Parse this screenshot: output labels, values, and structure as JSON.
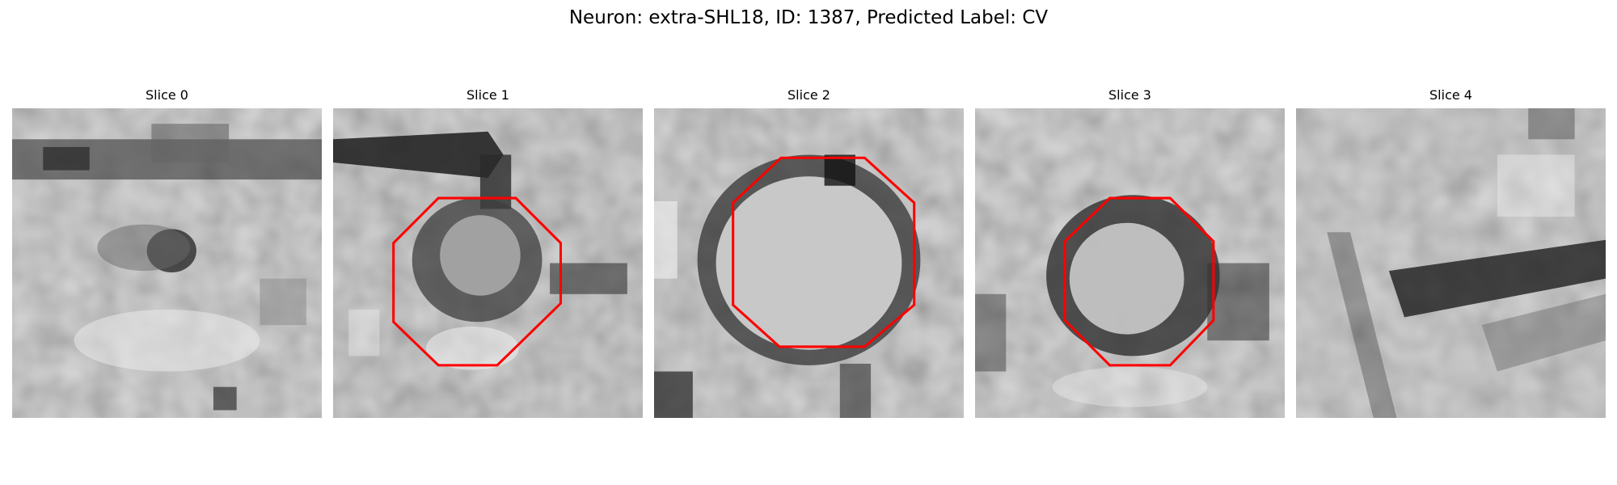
{
  "figure": {
    "title": "Neuron: extra-SHL18, ID: 1387, Predicted Label: CV"
  },
  "panels": [
    {
      "title": "Slice 0",
      "roi_drawn": false
    },
    {
      "title": "Slice 1",
      "roi_drawn": true
    },
    {
      "title": "Slice 2",
      "roi_drawn": true
    },
    {
      "title": "Slice 3",
      "roi_drawn": true
    },
    {
      "title": "Slice 4",
      "roi_drawn": false
    }
  ],
  "colors": {
    "roi_outline": "#ff0000",
    "colormap": "gray"
  }
}
